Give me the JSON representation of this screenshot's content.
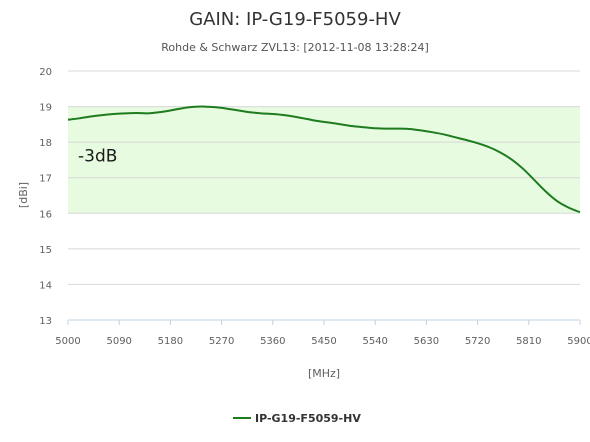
{
  "chart_data": {
    "type": "line",
    "title": "GAIN: IP-G19-F5059-HV",
    "subtitle": "Rohde & Schwarz ZVL13: [2012-11-08 13:28:24]",
    "xlabel": "[MHz]",
    "ylabel": "[dBi]",
    "xlim": [
      5000,
      5900
    ],
    "ylim": [
      13,
      20
    ],
    "x_ticks": [
      "5000",
      "5090",
      "5180",
      "5270",
      "5360",
      "5450",
      "5540",
      "5630",
      "5720",
      "5810",
      "5900"
    ],
    "y_ticks": [
      "13",
      "14",
      "15",
      "16",
      "17",
      "18",
      "19",
      "20"
    ],
    "band": {
      "label": "-3dB",
      "from": 16,
      "to": 19,
      "color": "#e6fbe0"
    },
    "grid": true,
    "legend_position": "bottom-center",
    "series": [
      {
        "name": "IP-G19-F5059-HV",
        "color": "#1e7b1e",
        "x": [
          5000,
          5020,
          5040,
          5060,
          5080,
          5100,
          5120,
          5140,
          5160,
          5180,
          5200,
          5220,
          5240,
          5260,
          5280,
          5300,
          5320,
          5340,
          5360,
          5380,
          5400,
          5420,
          5440,
          5460,
          5480,
          5500,
          5520,
          5540,
          5560,
          5580,
          5600,
          5620,
          5640,
          5660,
          5680,
          5700,
          5720,
          5740,
          5760,
          5780,
          5800,
          5820,
          5840,
          5860,
          5880,
          5900
        ],
        "y": [
          18.63,
          18.67,
          18.72,
          18.76,
          18.79,
          18.81,
          18.82,
          18.81,
          18.84,
          18.89,
          18.95,
          18.99,
          19.0,
          18.98,
          18.94,
          18.89,
          18.84,
          18.81,
          18.79,
          18.76,
          18.71,
          18.65,
          18.59,
          18.55,
          18.5,
          18.45,
          18.42,
          18.39,
          18.38,
          18.38,
          18.37,
          18.33,
          18.28,
          18.22,
          18.14,
          18.06,
          17.97,
          17.86,
          17.71,
          17.51,
          17.25,
          16.93,
          16.61,
          16.34,
          16.16,
          16.03
        ]
      }
    ]
  }
}
